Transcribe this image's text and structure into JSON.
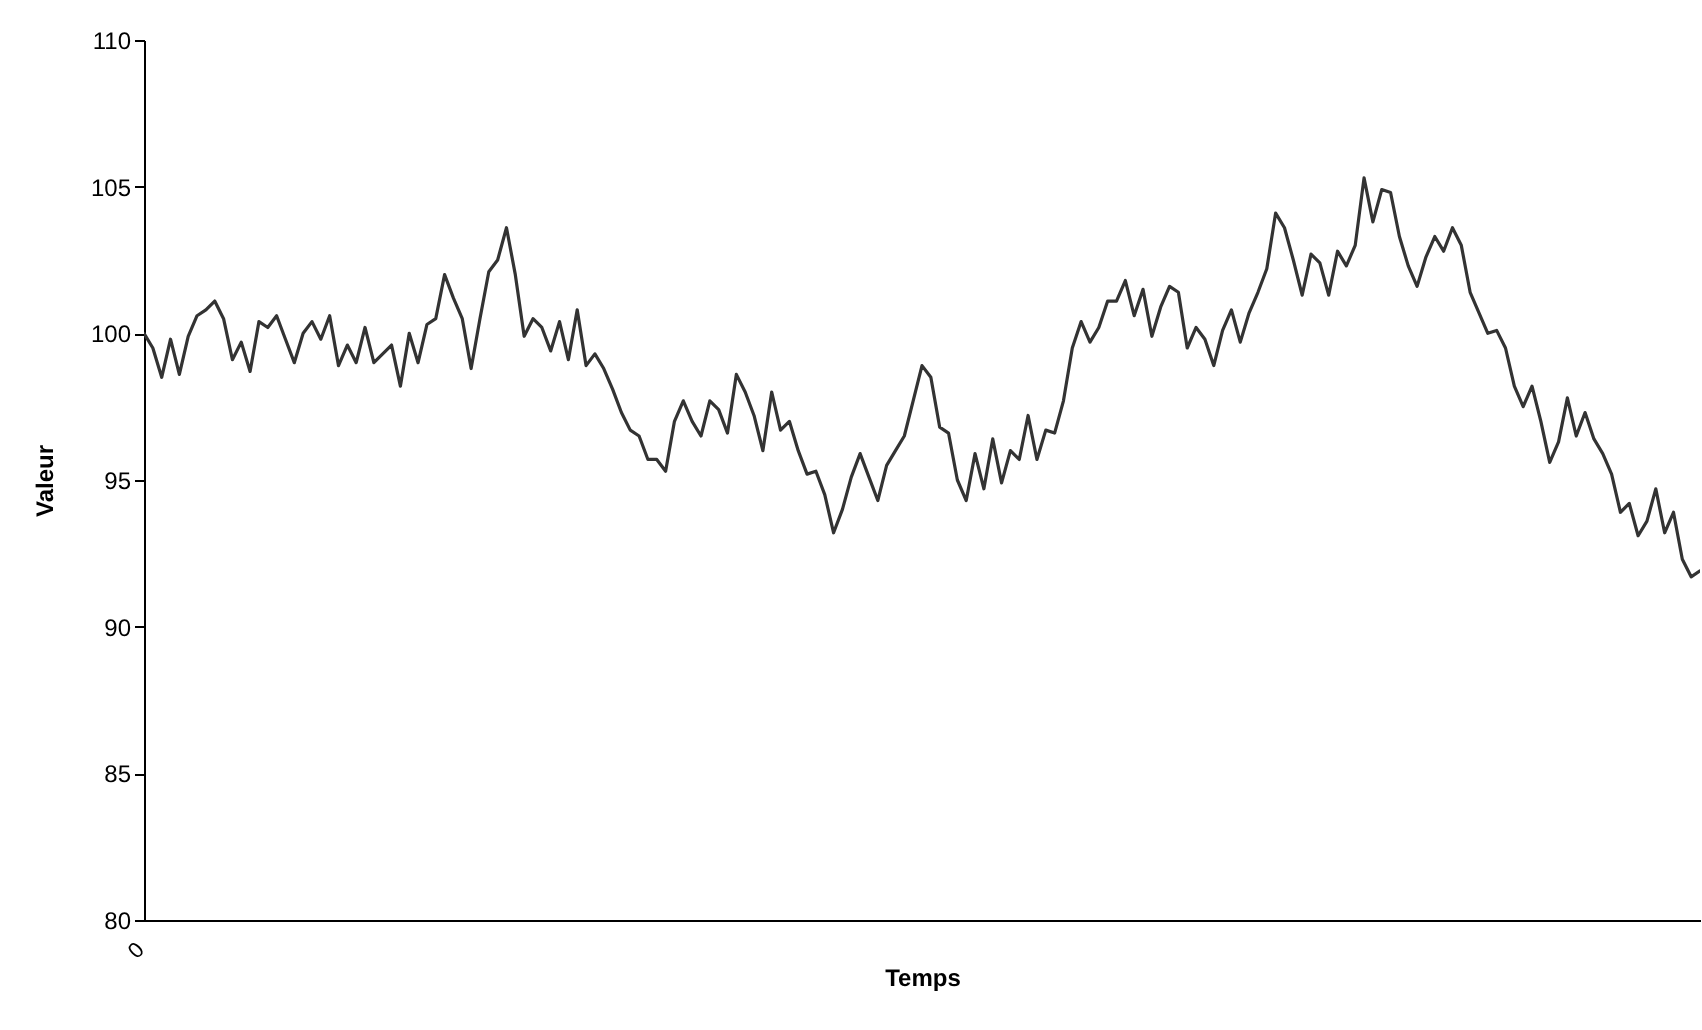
{
  "chart_data": {
    "type": "line",
    "xlabel": "Temps",
    "ylabel": "Valeur",
    "ylim": [
      80,
      110
    ],
    "yticks": [
      80,
      85,
      90,
      95,
      100,
      105,
      110
    ],
    "annotations": [
      "0"
    ],
    "grid": false,
    "marker": "none",
    "line_style": "solid",
    "categories": [
      null,
      null,
      null,
      null,
      null,
      null,
      null,
      null,
      null,
      null,
      null,
      null,
      null,
      null,
      null,
      null,
      null,
      null,
      null,
      null,
      null,
      null,
      null,
      null,
      null,
      null,
      null,
      null,
      null,
      null,
      null,
      null,
      null,
      null,
      null,
      null,
      null,
      null,
      null,
      null,
      null,
      null,
      null,
      null,
      null,
      null,
      null,
      null,
      null,
      null,
      null,
      null,
      null,
      null,
      null,
      null,
      null,
      null,
      null,
      null,
      null,
      null,
      null,
      null,
      null,
      null,
      null,
      null,
      null,
      null,
      null,
      null,
      null,
      null,
      null,
      null,
      null,
      null,
      null,
      null,
      null,
      null,
      null,
      null,
      null,
      null,
      null,
      null,
      null,
      null,
      null,
      null,
      null,
      null,
      null,
      null,
      null,
      null,
      null,
      null,
      null,
      null,
      null,
      null,
      null,
      null,
      null,
      null,
      null,
      null,
      null,
      null,
      null,
      null,
      null,
      null,
      null,
      null,
      null,
      null,
      null,
      null,
      null,
      null,
      null,
      null,
      null,
      null,
      null,
      null,
      null,
      null,
      null,
      null,
      null,
      null,
      null,
      null,
      null,
      null,
      null,
      null,
      null,
      null,
      null,
      null,
      null,
      null,
      null,
      null,
      null,
      null,
      null,
      null,
      null,
      null,
      null,
      null,
      null,
      null,
      null,
      null,
      null,
      null,
      null,
      null,
      null,
      null,
      null,
      null,
      null,
      null,
      null,
      null,
      null,
      null,
      null
    ],
    "series": [
      {
        "color": "#333333",
        "values": [
          100.0,
          99.5,
          98.5,
          99.8,
          98.6,
          99.9,
          100.6,
          100.8,
          101.1,
          100.5,
          99.1,
          99.7,
          98.7,
          100.4,
          100.2,
          100.6,
          99.8,
          99.0,
          100.0,
          100.4,
          99.8,
          100.6,
          98.9,
          99.6,
          99.0,
          100.2,
          99.0,
          99.3,
          99.6,
          98.2,
          100.0,
          99.0,
          100.3,
          100.5,
          102.0,
          101.2,
          100.5,
          98.8,
          100.5,
          102.1,
          102.5,
          103.6,
          102.0,
          99.9,
          100.5,
          100.2,
          99.4,
          100.4,
          99.1,
          100.8,
          98.9,
          99.3,
          98.8,
          98.1,
          97.3,
          96.7,
          96.5,
          95.7,
          95.7,
          95.3,
          97.0,
          97.7,
          97.0,
          96.5,
          97.7,
          97.4,
          96.6,
          98.6,
          98.0,
          97.2,
          96.0,
          98.0,
          96.7,
          97.0,
          96.0,
          95.2,
          95.3,
          94.5,
          93.2,
          94.0,
          95.1,
          95.9,
          95.1,
          94.3,
          95.5,
          96.0,
          96.5,
          97.7,
          98.9,
          98.5,
          96.8,
          96.6,
          95.0,
          94.3,
          95.9,
          94.7,
          96.4,
          94.9,
          96.0,
          95.7,
          97.2,
          95.7,
          96.7,
          96.6,
          97.7,
          99.5,
          100.4,
          99.7,
          100.2,
          101.1,
          101.1,
          101.8,
          100.6,
          101.5,
          99.9,
          100.9,
          101.6,
          101.4,
          99.5,
          100.2,
          99.8,
          98.9,
          100.1,
          100.8,
          99.7,
          100.7,
          101.4,
          102.2,
          104.1,
          103.6,
          102.5,
          101.3,
          102.7,
          102.4,
          101.3,
          102.8,
          102.3,
          103.0,
          105.3,
          103.8,
          104.9,
          104.8,
          103.3,
          102.3,
          101.6,
          102.6,
          103.3,
          102.8,
          103.6,
          103.0,
          101.4,
          100.7,
          100.0,
          100.1,
          99.5,
          98.2,
          97.5,
          98.2,
          97.0,
          95.6,
          96.3,
          97.8,
          96.5,
          97.3,
          96.4,
          95.9,
          95.2,
          93.9,
          94.2,
          93.1,
          93.6,
          94.7,
          93.2,
          93.9,
          92.3,
          91.7,
          91.9
        ]
      }
    ]
  }
}
